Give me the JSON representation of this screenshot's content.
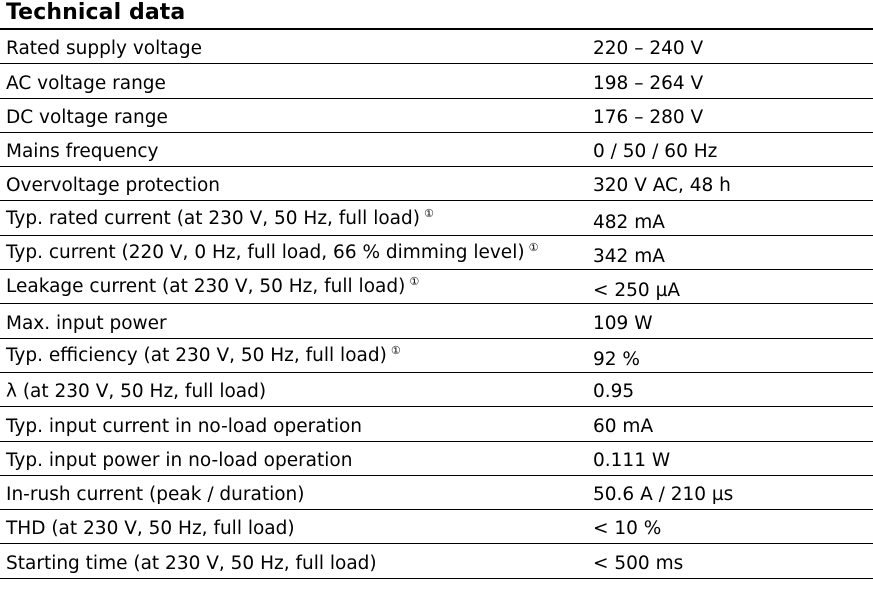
{
  "title": "Technical data",
  "footnote_marker": "①",
  "rows": [
    {
      "label": "Rated supply voltage",
      "value": "220 – 240 V",
      "note": false
    },
    {
      "label": "AC voltage range",
      "value": "198 – 264 V",
      "note": false
    },
    {
      "label": "DC voltage range",
      "value": "176 – 280 V",
      "note": false
    },
    {
      "label": "Mains frequency",
      "value": "0 / 50 / 60 Hz",
      "note": false
    },
    {
      "label": "Overvoltage protection",
      "value": "320 V AC, 48 h",
      "note": false
    },
    {
      "label": "Typ. rated current (at 230 V, 50 Hz, full load)",
      "value": "482 mA",
      "note": true
    },
    {
      "label": "Typ. current (220 V, 0 Hz, full load, 66 % dimming level)",
      "value": "342 mA",
      "note": true
    },
    {
      "label": "Leakage current (at 230 V, 50 Hz, full load)",
      "value": "< 250 µA",
      "note": true
    },
    {
      "label": "Max. input power",
      "value": "109 W",
      "note": false
    },
    {
      "label": "Typ. efficiency (at 230 V, 50 Hz, full load)",
      "value": "92 %",
      "note": true
    },
    {
      "label": "λ (at 230 V, 50 Hz, full load)",
      "value": "0.95",
      "note": false
    },
    {
      "label": "Typ. input current in no-load operation",
      "value": "60 mA",
      "note": false
    },
    {
      "label": "Typ. input power in no-load operation",
      "value": "0.111 W",
      "note": false
    },
    {
      "label": "In-rush current (peak / duration)",
      "value": "50.6 A / 210 µs",
      "note": false
    },
    {
      "label": "THD (at 230 V, 50 Hz, full load)",
      "value": "< 10 %",
      "note": false
    },
    {
      "label": "Starting time (at 230 V, 50 Hz, full load)",
      "value": "< 500 ms",
      "note": false
    }
  ]
}
